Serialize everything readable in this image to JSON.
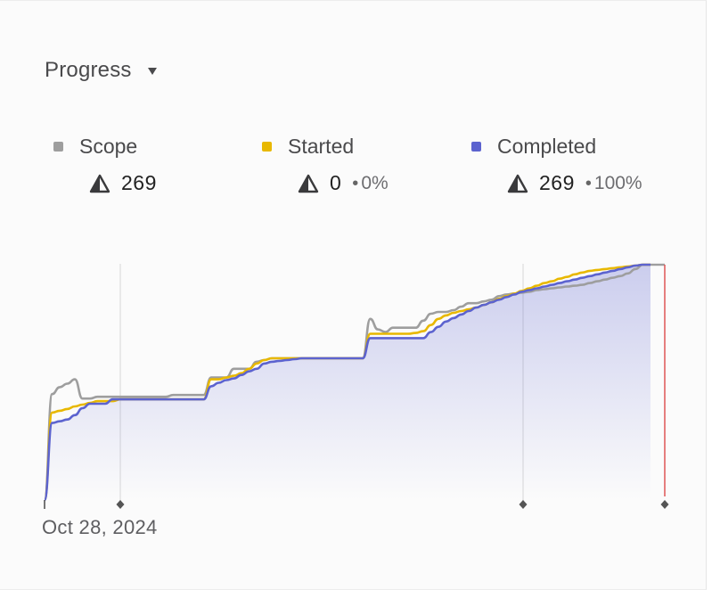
{
  "header": {
    "title": "Progress"
  },
  "legend": [
    {
      "name": "Scope",
      "count": "269",
      "percent": "",
      "color": "#9e9e9e"
    },
    {
      "name": "Started",
      "count": "0",
      "percent": "0%",
      "color": "#e8b800"
    },
    {
      "name": "Completed",
      "count": "269",
      "percent": "100%",
      "color": "#5c63cf"
    }
  ],
  "chart_data": {
    "type": "area",
    "x_start_label": "Oct 28, 2024",
    "ylim": [
      0,
      269
    ],
    "x": [
      0,
      1,
      2,
      3,
      4,
      5,
      6,
      7,
      8,
      9,
      10,
      11,
      12,
      13,
      14,
      15,
      16,
      17,
      18,
      19,
      20,
      21,
      22,
      23,
      24,
      25,
      26,
      27,
      28,
      29,
      30,
      31,
      32,
      33,
      34,
      35,
      36,
      37,
      38,
      39,
      40,
      41,
      42,
      43,
      44,
      45,
      46,
      47,
      48,
      49,
      50,
      51,
      52,
      53,
      54,
      55,
      56,
      57,
      58,
      59,
      60,
      61,
      62,
      63,
      64,
      65,
      66,
      67,
      68,
      69,
      70,
      71,
      72,
      73,
      74,
      75,
      76,
      77,
      78,
      79,
      80
    ],
    "series": [
      {
        "name": "Scope",
        "color": "#9e9e9e",
        "values": [
          0,
          121,
          129,
          133,
          138,
          116,
          116,
          118,
          118,
          118,
          118,
          118,
          118,
          118,
          118,
          118,
          118,
          120,
          120,
          120,
          120,
          120,
          140,
          140,
          140,
          150,
          150,
          150,
          158,
          160,
          162,
          162,
          162,
          162,
          162,
          162,
          162,
          162,
          162,
          162,
          162,
          162,
          162,
          207,
          195,
          192,
          197,
          197,
          197,
          197,
          205,
          213,
          215,
          215,
          217,
          221,
          225,
          225,
          227,
          229,
          233,
          235,
          236,
          237,
          238,
          240,
          241,
          242,
          243,
          244,
          245,
          246,
          248,
          250,
          252,
          254,
          256,
          259,
          264,
          269,
          269
        ]
      },
      {
        "name": "Started",
        "color": "#e8b800",
        "values": [
          0,
          100,
          102,
          104,
          107,
          109,
          111,
          113,
          113,
          113,
          115,
          115,
          115,
          115,
          115,
          115,
          115,
          115,
          115,
          115,
          115,
          115,
          138,
          138,
          140,
          142,
          145,
          150,
          156,
          160,
          162,
          162,
          162,
          162,
          162,
          162,
          162,
          162,
          162,
          162,
          162,
          162,
          162,
          190,
          190,
          190,
          190,
          190,
          190,
          191,
          193,
          200,
          207,
          211,
          214,
          216,
          218,
          220,
          223,
          226,
          230,
          233,
          236,
          239,
          242,
          245,
          248,
          250,
          253,
          255,
          258,
          260,
          262,
          263,
          264,
          265,
          266,
          267,
          268,
          269,
          269
        ]
      },
      {
        "name": "Completed",
        "color": "#5c63cf",
        "values": [
          0,
          88,
          90,
          92,
          97,
          105,
          110,
          110,
          110,
          115,
          115,
          115,
          115,
          115,
          115,
          115,
          115,
          115,
          115,
          115,
          115,
          115,
          130,
          134,
          137,
          139,
          143,
          147,
          150,
          156,
          158,
          159,
          160,
          161,
          162,
          162,
          162,
          162,
          162,
          162,
          162,
          162,
          162,
          185,
          185,
          185,
          185,
          185,
          185,
          185,
          185,
          192,
          198,
          204,
          208,
          212,
          216,
          220,
          223,
          226,
          229,
          232,
          235,
          238,
          240,
          242,
          244,
          246,
          248,
          250,
          252,
          254,
          256,
          258,
          260,
          262,
          264,
          266,
          268,
          269,
          269
        ]
      }
    ],
    "markers": [
      "start",
      "milestone",
      "milestone",
      "today"
    ]
  }
}
